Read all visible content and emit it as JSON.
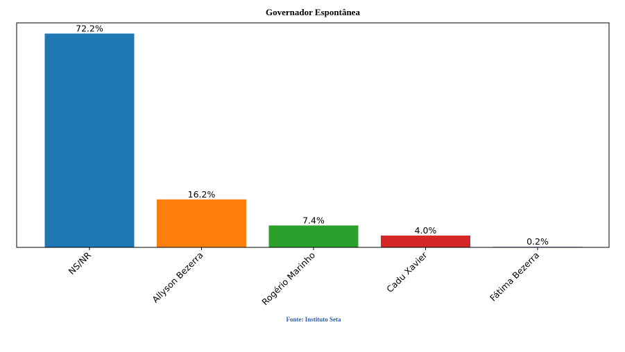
{
  "chart_data": {
    "type": "bar",
    "title": "Governador Espontânea",
    "xlabel": "",
    "ylabel": "",
    "categories": [
      "NS/NR",
      "Allyson Bezerra",
      "Rogério Marinho",
      "Cadu Xavier",
      "Fátima Bezerra"
    ],
    "values": [
      72.2,
      16.2,
      7.4,
      4.0,
      0.2
    ],
    "value_labels": [
      "72.2%",
      "16.2%",
      "7.4%",
      "4.0%",
      "0.2%"
    ],
    "colors": [
      "#1f77b4",
      "#ff7f0e",
      "#2ca02c",
      "#d62728",
      "#9467bd"
    ],
    "ylim": [
      0,
      75.81
    ],
    "grid": false,
    "legend": "none",
    "y_ticks_visible": false,
    "tick_rotation_deg": -45
  },
  "source": {
    "text": "Fonte: Instituto Seta",
    "color": "#2a5caa"
  }
}
